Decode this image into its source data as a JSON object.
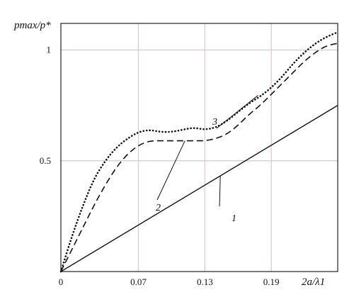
{
  "chart_data": {
    "type": "line",
    "xlabel": "2a/λ1",
    "ylabel": "pmax/p*",
    "xlim": [
      0,
      0.25
    ],
    "ylim": [
      0,
      1.12
    ],
    "x_ticks": [
      "0",
      "0.07",
      "0.13",
      "0.19"
    ],
    "y_ticks": [
      "0.5",
      "1"
    ],
    "grid": true,
    "series": [
      {
        "name": "1",
        "style": "solid",
        "x": [
          0,
          0.25
        ],
        "y": [
          0,
          0.75
        ]
      },
      {
        "name": "2",
        "style": "dashed",
        "x": [
          0,
          0.01,
          0.02,
          0.03,
          0.04,
          0.05,
          0.06,
          0.07,
          0.08,
          0.09,
          0.1,
          0.11,
          0.12,
          0.13,
          0.14,
          0.15,
          0.16,
          0.17,
          0.18,
          0.19,
          0.2,
          0.21,
          0.22,
          0.23,
          0.24,
          0.25
        ],
        "y": [
          0,
          0.1,
          0.2,
          0.3,
          0.39,
          0.47,
          0.53,
          0.57,
          0.59,
          0.59,
          0.59,
          0.59,
          0.59,
          0.59,
          0.6,
          0.62,
          0.66,
          0.71,
          0.75,
          0.8,
          0.85,
          0.9,
          0.95,
          0.99,
          1.02,
          1.03
        ]
      },
      {
        "name": "3",
        "style": "dotted",
        "x": [
          0,
          0.01,
          0.02,
          0.03,
          0.04,
          0.05,
          0.06,
          0.07,
          0.08,
          0.09,
          0.1,
          0.11,
          0.12,
          0.13,
          0.14,
          0.15,
          0.16,
          0.17,
          0.18,
          0.19,
          0.2,
          0.21,
          0.22,
          0.23,
          0.24,
          0.25
        ],
        "y": [
          0,
          0.16,
          0.3,
          0.42,
          0.5,
          0.56,
          0.6,
          0.63,
          0.64,
          0.63,
          0.63,
          0.64,
          0.65,
          0.64,
          0.65,
          0.68,
          0.72,
          0.76,
          0.79,
          0.83,
          0.88,
          0.94,
          0.99,
          1.03,
          1.06,
          1.08
        ]
      }
    ]
  }
}
